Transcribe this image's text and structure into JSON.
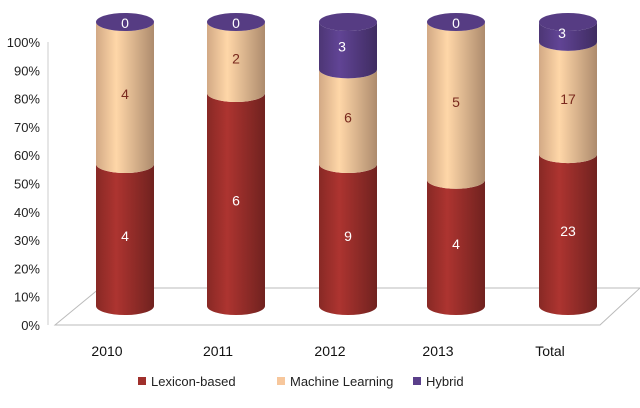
{
  "chart_data": {
    "type": "bar",
    "stacked": "percent",
    "style": "3d-cylinder",
    "categories": [
      "2010",
      "2011",
      "2012",
      "2013",
      "Total"
    ],
    "series": [
      {
        "name": "Lexicon-based",
        "values": [
          4,
          6,
          9,
          4,
          23
        ],
        "color": "#a0302c"
      },
      {
        "name": "Machine Learning",
        "values": [
          4,
          2,
          6,
          5,
          17
        ],
        "color": "#f7c79c"
      },
      {
        "name": "Hybrid",
        "values": [
          0,
          0,
          3,
          0,
          3
        ],
        "color": "#5a3f8a"
      }
    ],
    "y_ticks": [
      "0%",
      "10%",
      "20%",
      "30%",
      "40%",
      "50%",
      "60%",
      "70%",
      "80%",
      "90%",
      "100%"
    ],
    "ylim": [
      0,
      100
    ],
    "grid": false,
    "legend": "bottom",
    "title": "",
    "xlabel": "",
    "ylabel": ""
  }
}
